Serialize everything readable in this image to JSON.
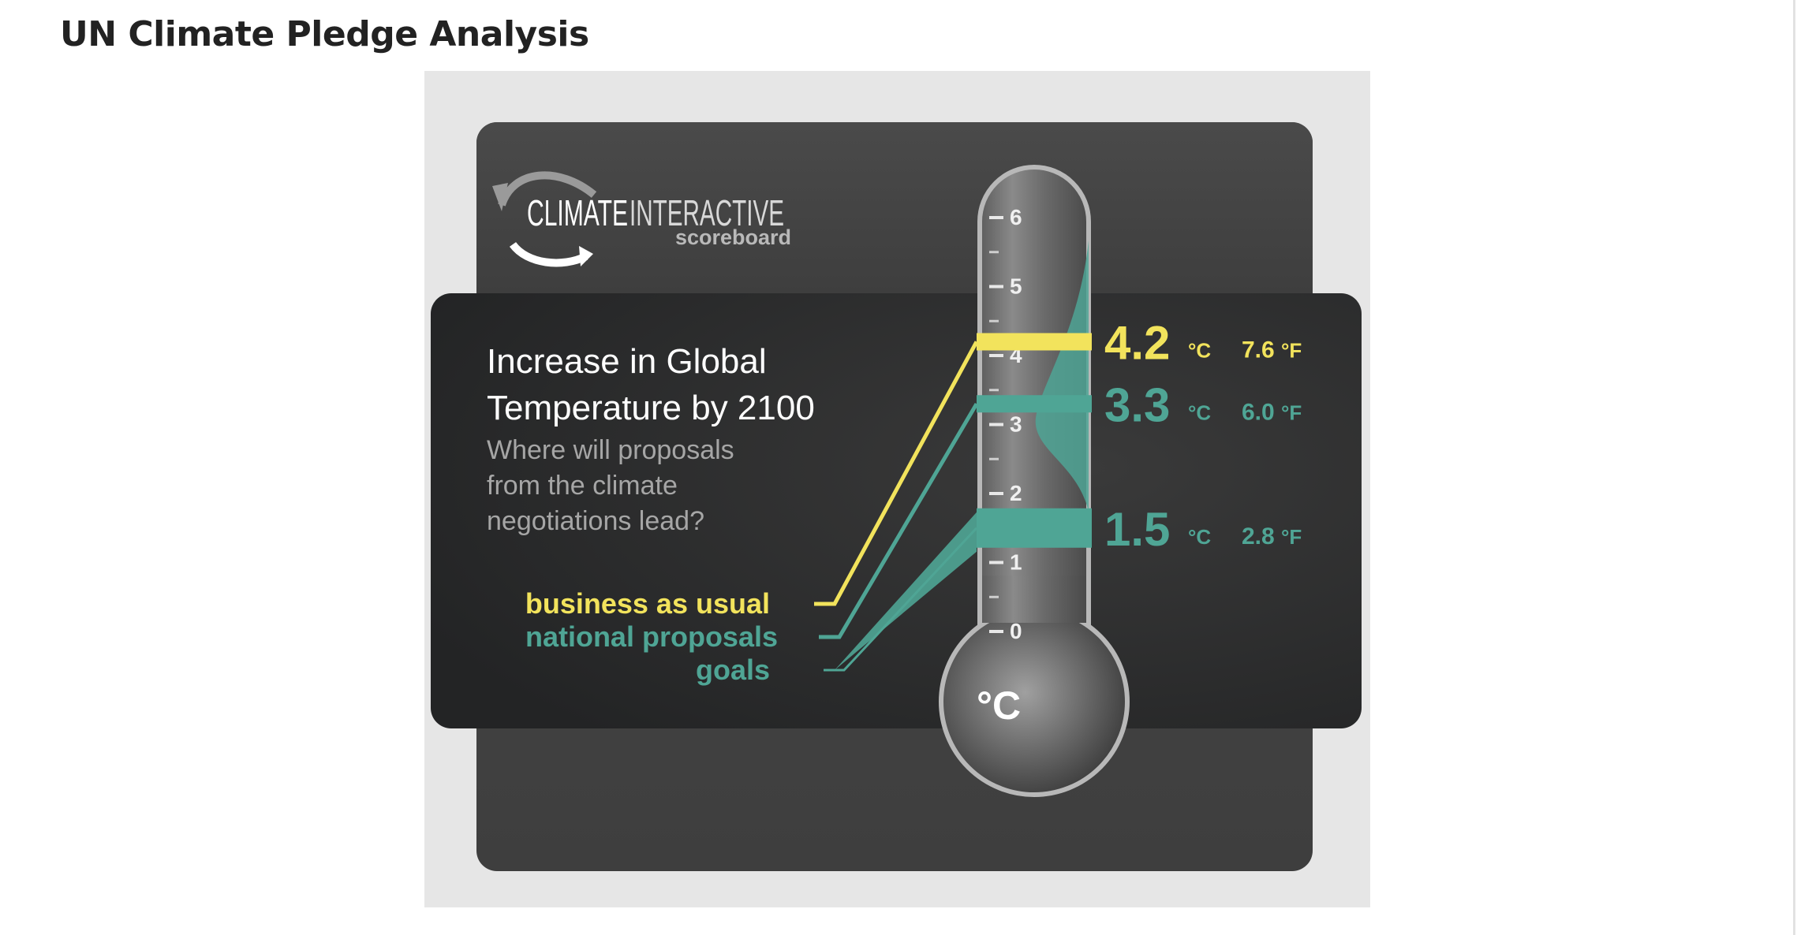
{
  "page": {
    "title": "UN Climate Pledge Analysis"
  },
  "infographic": {
    "brand": {
      "name_part1": "CLIMATE",
      "name_part2": "INTERACTIVE",
      "subtitle": "scoreboard"
    },
    "heading_line1": "Increase in Global",
    "heading_line2": "Temperature by 2100",
    "question_line1": "Where will proposals",
    "question_line2": "from the climate",
    "question_line3": "negotiations lead?",
    "unit_label": "°C"
  },
  "chart_data": {
    "type": "bar",
    "title": "Increase in Global Temperature by 2100",
    "unit": "°C",
    "ylim": [
      0,
      6
    ],
    "ticks": [
      "0",
      "1",
      "2",
      "3",
      "4",
      "5",
      "6"
    ],
    "series": [
      {
        "name": "business as usual",
        "value": 4.2,
        "celsius_label": "4.2",
        "unit_c": "°C",
        "fahrenheit_label": "7.6",
        "unit_f": "°F",
        "color": "#f2e35c"
      },
      {
        "name": "national proposals",
        "value": 3.3,
        "celsius_label": "3.3",
        "unit_c": "°C",
        "fahrenheit_label": "6.0",
        "unit_f": "°F",
        "color": "#4fa595"
      },
      {
        "name": "goals",
        "value": 1.5,
        "celsius_label": "1.5",
        "unit_c": "°C",
        "fahrenheit_label": "2.8",
        "unit_f": "°F",
        "color": "#4fa595"
      }
    ]
  }
}
